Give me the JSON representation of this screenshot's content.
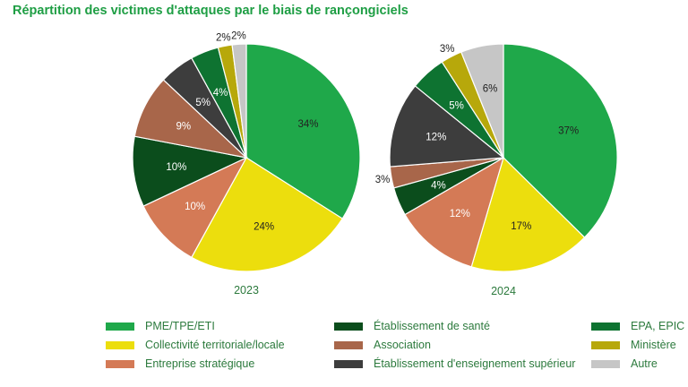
{
  "title": "Répartition des victimes d'attaques par le biais de rançongiciels",
  "chart_data": [
    {
      "type": "pie",
      "year_label": "2023",
      "slices": [
        {
          "category": "PME/TPE/ETI",
          "value": 34,
          "label": "34%"
        },
        {
          "category": "Collectivité territoriale/locale",
          "value": 24,
          "label": "24%"
        },
        {
          "category": "Entreprise stratégique",
          "value": 10,
          "label": "10%"
        },
        {
          "category": "Établissement de santé",
          "value": 10,
          "label": "10%"
        },
        {
          "category": "Association",
          "value": 9,
          "label": "9%"
        },
        {
          "category": "Établissement d'enseignement supérieur",
          "value": 5,
          "label": "5%"
        },
        {
          "category": "EPA, EPIC",
          "value": 4,
          "label": "4%"
        },
        {
          "category": "Ministère",
          "value": 2,
          "label": "2%"
        },
        {
          "category": "Autre",
          "value": 2,
          "label": "2%"
        }
      ]
    },
    {
      "type": "pie",
      "year_label": "2024",
      "slices": [
        {
          "category": "PME/TPE/ETI",
          "value": 37,
          "label": "37%"
        },
        {
          "category": "Collectivité territoriale/locale",
          "value": 17,
          "label": "17%"
        },
        {
          "category": "Entreprise stratégique",
          "value": 12,
          "label": "12%"
        },
        {
          "category": "Établissement de santé",
          "value": 4,
          "label": "4%"
        },
        {
          "category": "Association",
          "value": 3,
          "label": "3%"
        },
        {
          "category": "Établissement d'enseignement supérieur",
          "value": 12,
          "label": "12%"
        },
        {
          "category": "EPA, EPIC",
          "value": 5,
          "label": "5%"
        },
        {
          "category": "Ministère",
          "value": 3,
          "label": "3%"
        },
        {
          "category": "Autre",
          "value": 6,
          "label": "6%"
        }
      ]
    }
  ],
  "legend": [
    {
      "label": "PME/TPE/ETI",
      "color": "#1fa84a"
    },
    {
      "label": "Collectivité territoriale/locale",
      "color": "#ecde0d"
    },
    {
      "label": "Entreprise stratégique",
      "color": "#d47a56"
    },
    {
      "label": "Établissement de santé",
      "color": "#0b4d1c"
    },
    {
      "label": "Association",
      "color": "#a8664a"
    },
    {
      "label": "Établissement d'enseignement supérieur",
      "color": "#3d3d3d"
    },
    {
      "label": "EPA, EPIC",
      "color": "#0e7331"
    },
    {
      "label": "Ministère",
      "color": "#b7a80b"
    },
    {
      "label": "Autre",
      "color": "#c6c6c6"
    }
  ]
}
